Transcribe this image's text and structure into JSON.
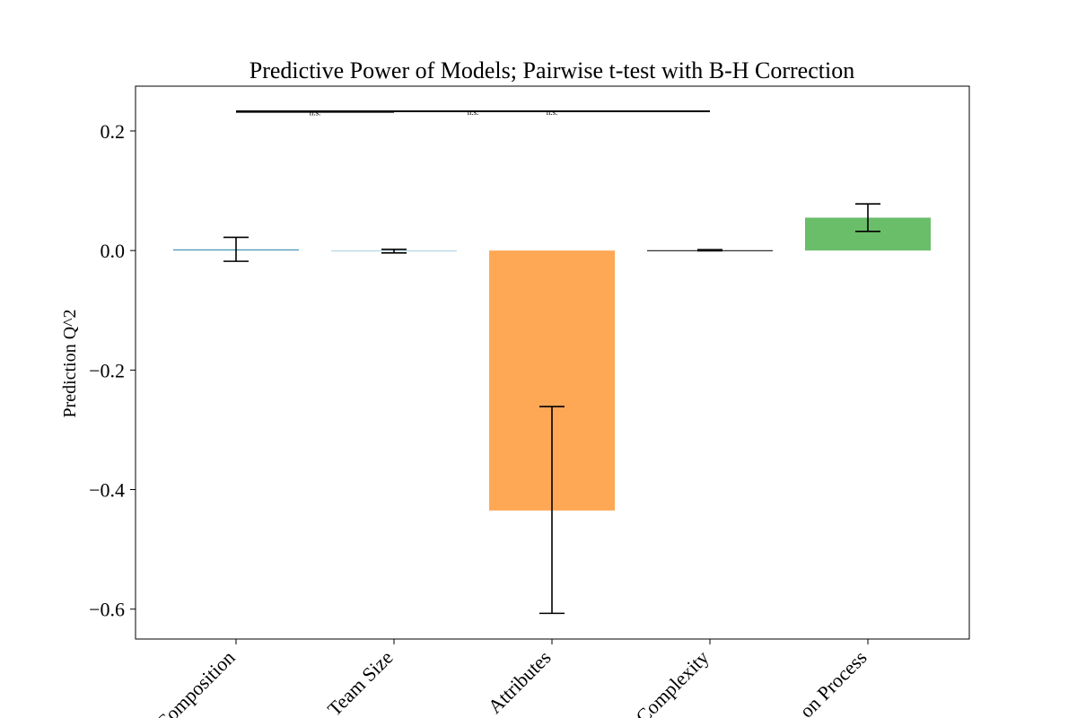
{
  "chart_data": {
    "type": "bar",
    "title": "Predictive Power of Models; Pairwise t-test with B-H Correction",
    "xlabel": "",
    "ylabel": "Prediction Q^2",
    "categories": [
      "Composition",
      "Team Size",
      "Attributes",
      "Complexity",
      "on Process"
    ],
    "values": [
      0.002,
      -0.001,
      -0.435,
      0.0005,
      0.055
    ],
    "errors": [
      0.02,
      0.003,
      0.173,
      0.001,
      0.023
    ],
    "error_centers": [
      0.002,
      -0.001,
      -0.434,
      0.0005,
      0.055
    ],
    "colors": [
      "#4a9ab5",
      "#a6cfe0",
      "#fea856",
      "#000000",
      "#6abe6a"
    ],
    "ylim": [
      -0.65,
      0.275
    ],
    "yticks": [
      0.2,
      0.0,
      -0.2,
      -0.4,
      -0.6
    ],
    "ytick_labels": [
      "0.2",
      "0.0",
      "−0.2",
      "−0.4",
      "−0.6"
    ],
    "grid": false,
    "significance": [
      {
        "from": 0,
        "to": 1,
        "y": 0.232,
        "label": "n.s."
      },
      {
        "from": 0,
        "to": 3,
        "y": 0.233,
        "label": "n.s."
      },
      {
        "from": 1,
        "to": 3,
        "y": 0.233,
        "label": "n.s."
      }
    ]
  }
}
